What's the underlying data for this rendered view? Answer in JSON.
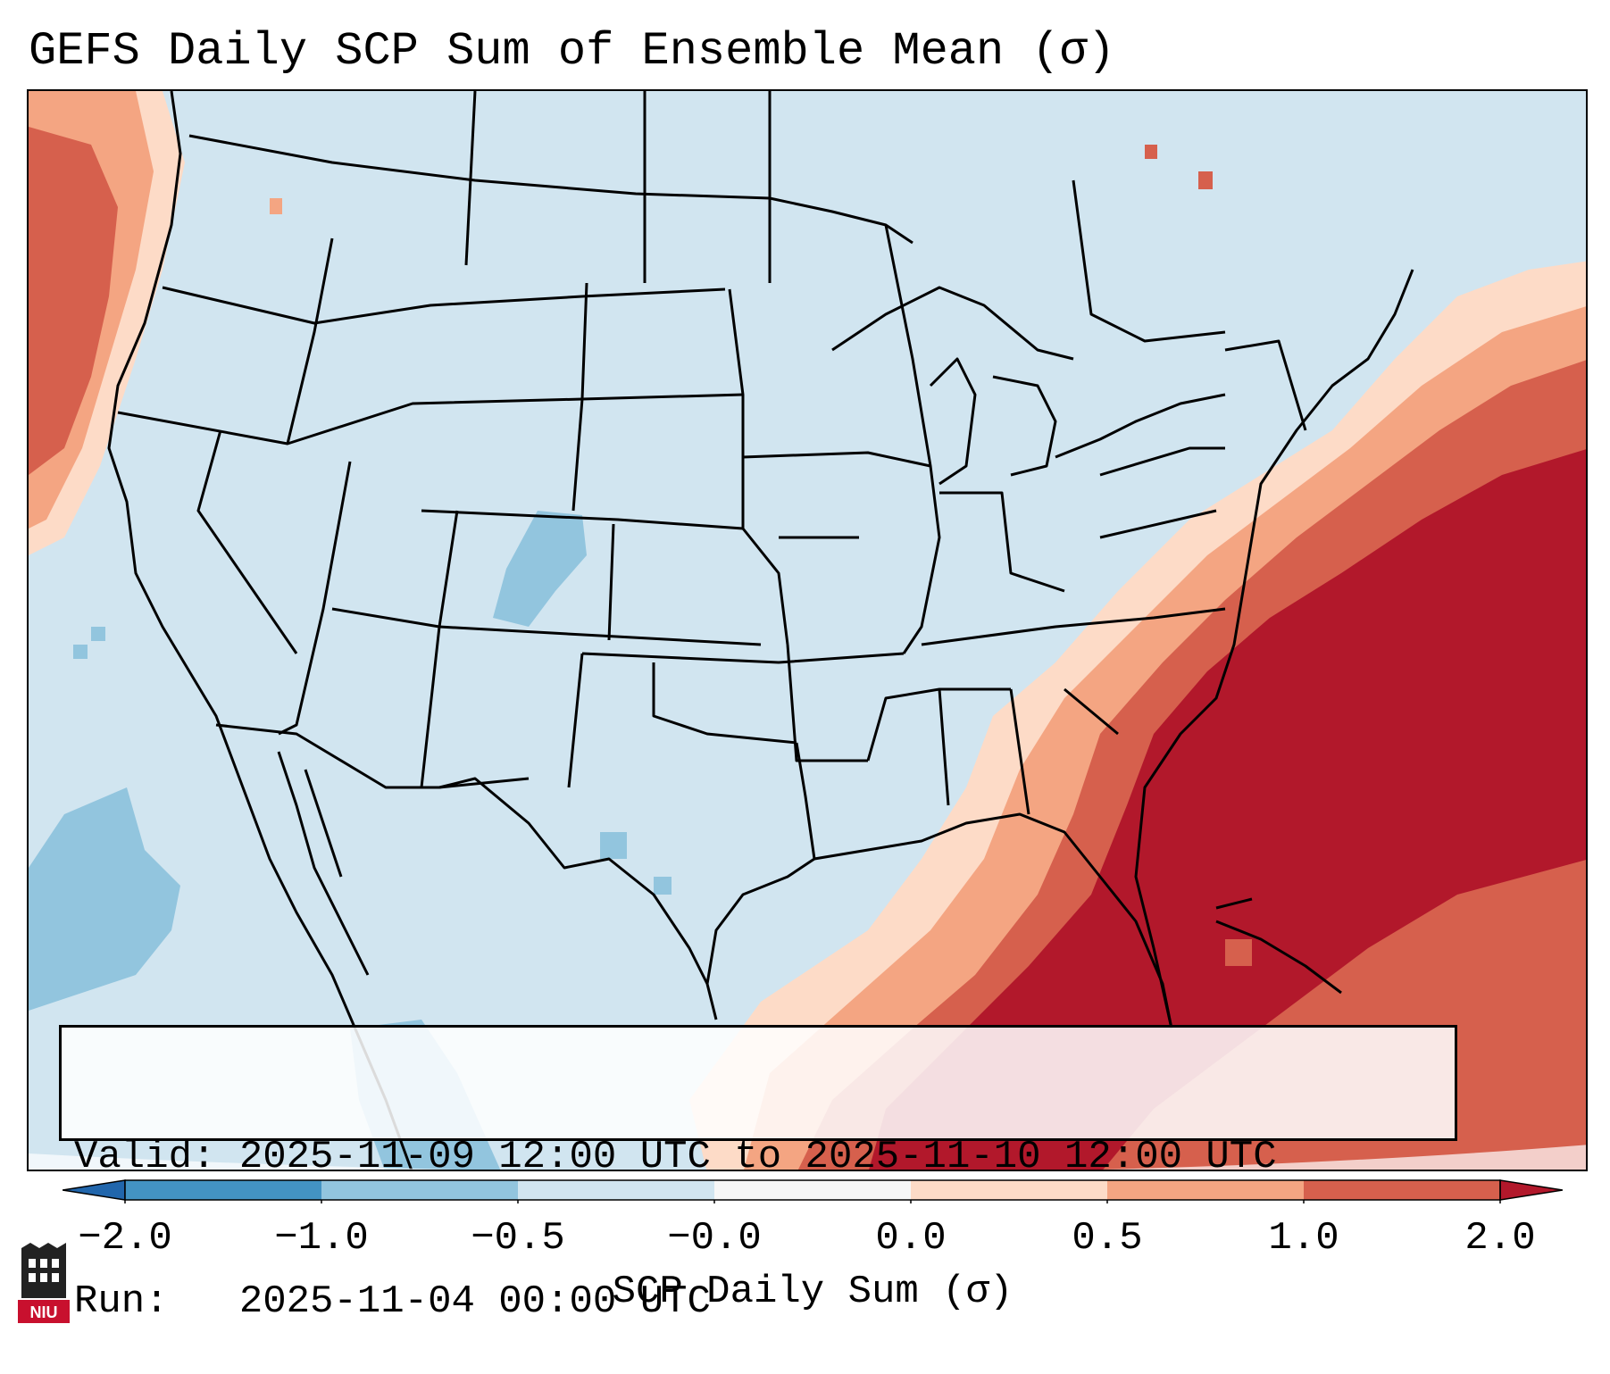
{
  "header": {
    "title": "GEFS Daily SCP Sum of Ensemble Mean (σ)"
  },
  "map": {
    "region": "Contiguous United States",
    "background_color": "#d1e5f0",
    "border_color": "#000000"
  },
  "info_box": {
    "valid_line": "Valid: 2025-11-09 12:00 UTC to 2025-11-10 12:00 UTC",
    "run_line": "Run:   2025-11-04 00:00 UTC"
  },
  "colorbar": {
    "label": "SCP Daily Sum (σ)",
    "ticks": [
      "−2.0",
      "−1.0",
      "−0.5",
      "−0.0",
      "0.0",
      "0.5",
      "1.0",
      "2.0"
    ],
    "bins": [
      {
        "range": "< -2.0",
        "color": "#2166ac"
      },
      {
        "range": "-2.0 to -1.0",
        "color": "#4393c3"
      },
      {
        "range": "-1.0 to -0.5",
        "color": "#92c5de"
      },
      {
        "range": "-0.5 to -0.0",
        "color": "#d1e5f0"
      },
      {
        "range": "-0.0 to 0.0",
        "color": "#f7f7f7"
      },
      {
        "range": "0.0 to 0.5",
        "color": "#fddbc7"
      },
      {
        "range": "0.5 to 1.0",
        "color": "#f4a582"
      },
      {
        "range": "1.0 to 2.0",
        "color": "#d6604d"
      },
      {
        "range": "> 2.0",
        "color": "#b2182b"
      }
    ]
  },
  "logo": {
    "text": "NIU"
  }
}
